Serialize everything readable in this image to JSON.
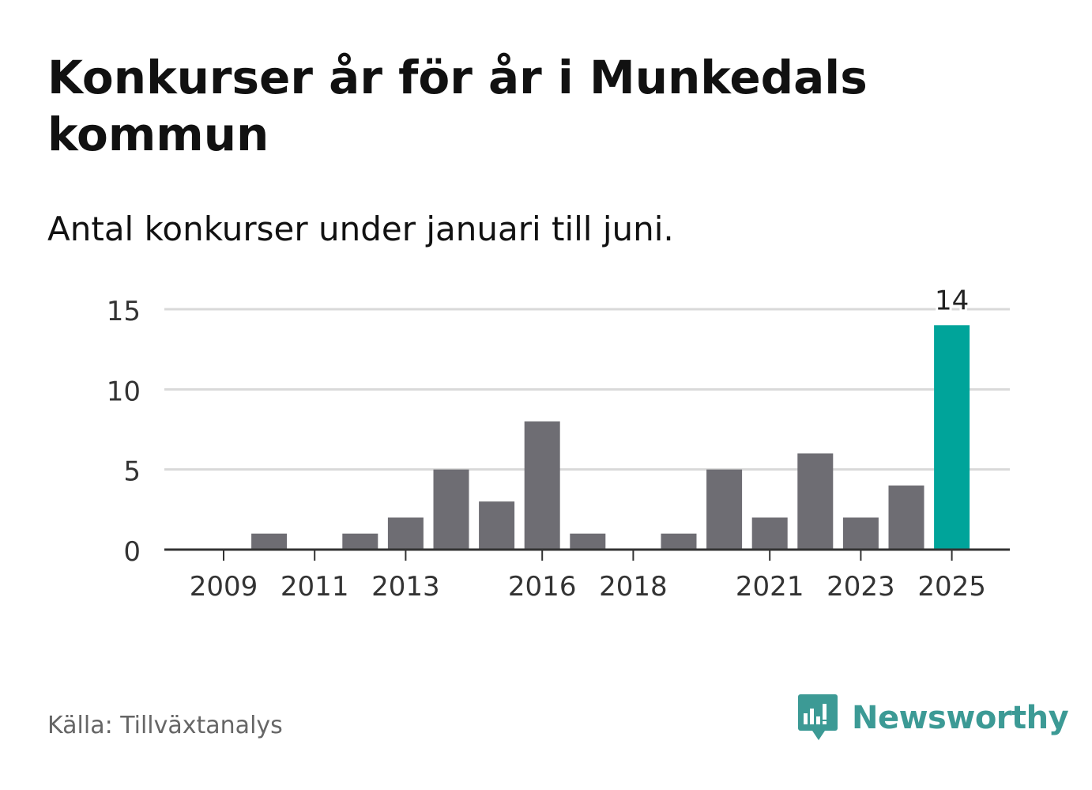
{
  "header": {
    "title": "Konkurser år för år i Munkedals kommun",
    "subtitle": "Antal konkurser under januari till juni."
  },
  "footer": {
    "source": "Källa: Tillväxtanalys",
    "brand": "Newsworthy",
    "brand_icon": "newsworthy-logo-icon"
  },
  "colors": {
    "bar": "#6e6d73",
    "highlight": "#00a49a",
    "grid": "#d9d9d9",
    "axis": "#333333",
    "brand": "#3c9a95"
  },
  "chart_data": {
    "type": "bar",
    "title": "Konkurser år för år i Munkedals kommun",
    "subtitle": "Antal konkurser under januari till juni.",
    "categories": [
      "2009",
      "2010",
      "2011",
      "2012",
      "2013",
      "2014",
      "2015",
      "2016",
      "2017",
      "2018",
      "2019",
      "2020",
      "2021",
      "2022",
      "2023",
      "2024",
      "2025"
    ],
    "values": [
      0,
      1,
      0,
      1,
      2,
      5,
      3,
      8,
      1,
      0,
      1,
      5,
      2,
      6,
      2,
      4,
      14
    ],
    "x_tick_labels": [
      "2009",
      "2011",
      "2013",
      "2016",
      "2018",
      "2021",
      "2023",
      "2025"
    ],
    "y_ticks": [
      0,
      5,
      10,
      15
    ],
    "ylim": [
      0,
      15
    ],
    "xlabel": "",
    "ylabel": "",
    "grid": true,
    "highlight_category": "2025",
    "data_labels": [
      {
        "category": "2025",
        "text": "14"
      }
    ],
    "legend": "none"
  }
}
